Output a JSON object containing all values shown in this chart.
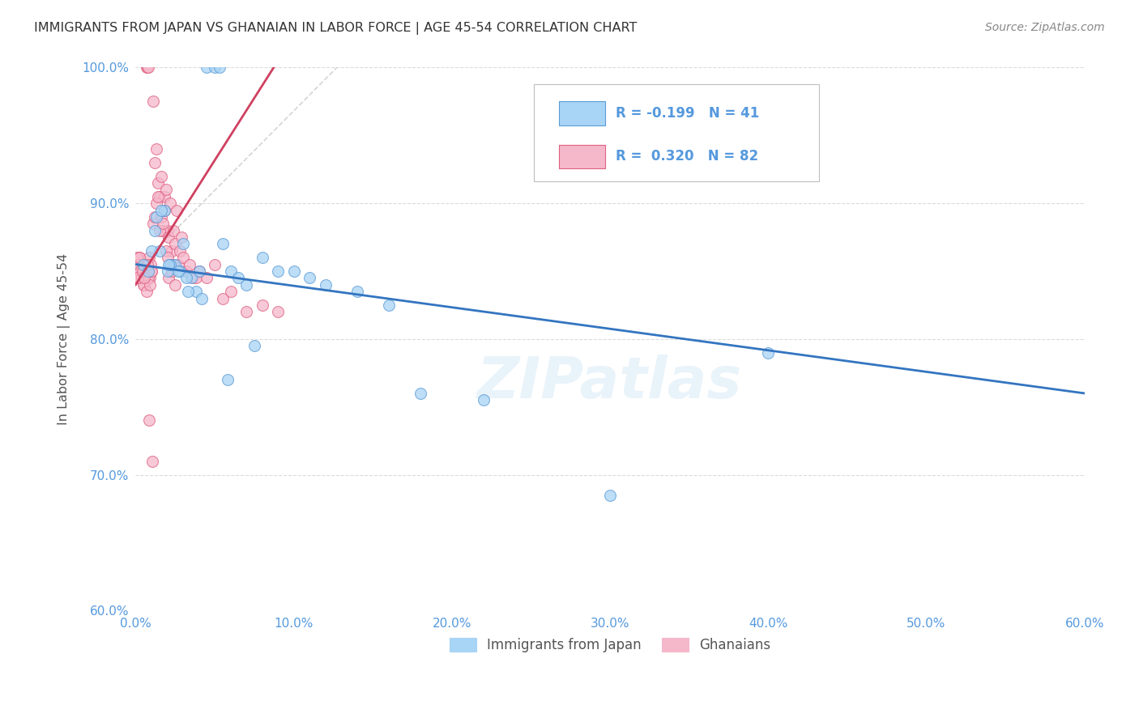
{
  "title": "IMMIGRANTS FROM JAPAN VS GHANAIAN IN LABOR FORCE | AGE 45-54 CORRELATION CHART",
  "source": "Source: ZipAtlas.com",
  "ylabel": "In Labor Force | Age 45-54",
  "y_ticks": [
    60.0,
    70.0,
    80.0,
    90.0,
    100.0
  ],
  "x_ticks": [
    0.0,
    10.0,
    20.0,
    30.0,
    40.0,
    50.0,
    60.0
  ],
  "xlim": [
    0.0,
    60.0
  ],
  "ylim": [
    60.0,
    100.0
  ],
  "blue_R": -0.199,
  "blue_N": 41,
  "pink_R": 0.32,
  "pink_N": 82,
  "legend_label_blue": "Immigrants from Japan",
  "legend_label_pink": "Ghanaians",
  "blue_color": "#a8d4f5",
  "pink_color": "#f5b8cb",
  "blue_edge_color": "#5b9bd5",
  "pink_edge_color": "#e06080",
  "blue_line_color": "#3375c0",
  "pink_line_color": "#d04060",
  "ref_line_color": "#d0d0d0",
  "background_color": "#ffffff",
  "grid_color": "#d8d8d8",
  "axis_tick_color": "#5599dd",
  "title_color": "#333333",
  "source_color": "#888888",
  "blue_scatter_x": [
    4.5,
    5.0,
    5.3,
    1.5,
    2.0,
    2.5,
    3.0,
    3.5,
    4.0,
    5.5,
    6.0,
    6.5,
    7.0,
    8.0,
    9.0,
    10.0,
    11.0,
    12.0,
    14.0,
    16.0,
    18.0,
    22.0,
    30.0,
    40.0,
    1.0,
    1.2,
    1.8,
    2.2,
    2.8,
    3.2,
    3.8,
    4.2,
    5.8,
    7.5,
    0.5,
    0.8,
    1.3,
    1.6,
    2.1,
    2.7,
    3.3
  ],
  "blue_scatter_y": [
    100.0,
    100.0,
    100.0,
    86.5,
    85.0,
    85.5,
    87.0,
    84.5,
    85.0,
    87.0,
    85.0,
    84.5,
    84.0,
    86.0,
    85.0,
    85.0,
    84.5,
    84.0,
    83.5,
    82.5,
    76.0,
    75.5,
    68.5,
    79.0,
    86.5,
    88.0,
    89.5,
    85.5,
    85.0,
    84.5,
    83.5,
    83.0,
    77.0,
    79.5,
    85.5,
    85.0,
    89.0,
    89.5,
    85.5,
    85.0,
    83.5
  ],
  "pink_scatter_x": [
    0.1,
    0.15,
    0.2,
    0.25,
    0.3,
    0.35,
    0.4,
    0.5,
    0.55,
    0.6,
    0.65,
    0.7,
    0.75,
    0.8,
    0.85,
    0.9,
    0.95,
    1.0,
    1.1,
    1.2,
    1.3,
    1.4,
    1.5,
    1.6,
    1.7,
    1.8,
    1.9,
    2.0,
    2.1,
    2.2,
    2.3,
    2.4,
    2.5,
    2.6,
    2.7,
    2.8,
    2.9,
    3.0,
    3.2,
    3.4,
    3.6,
    3.8,
    4.0,
    4.5,
    5.0,
    5.5,
    6.0,
    7.0,
    8.0,
    9.0,
    0.1,
    0.2,
    0.3,
    0.4,
    0.5,
    0.6,
    0.7,
    0.8,
    0.9,
    1.0,
    1.1,
    1.2,
    1.3,
    1.4,
    1.5,
    1.6,
    1.7,
    1.8,
    1.9,
    2.0,
    2.1,
    2.2,
    2.3,
    2.4,
    2.5,
    0.15,
    0.25,
    0.45,
    0.55,
    0.75,
    0.85,
    1.05
  ],
  "pink_scatter_y": [
    85.5,
    85.0,
    84.5,
    86.0,
    85.0,
    85.5,
    84.5,
    85.0,
    84.0,
    85.5,
    85.0,
    100.0,
    100.0,
    100.0,
    86.0,
    84.5,
    85.5,
    85.0,
    97.5,
    93.0,
    94.0,
    91.5,
    90.5,
    92.0,
    88.0,
    90.5,
    91.0,
    88.0,
    87.5,
    90.0,
    86.5,
    88.0,
    87.0,
    89.5,
    85.5,
    86.5,
    87.5,
    86.0,
    85.0,
    85.5,
    84.5,
    84.5,
    85.0,
    84.5,
    85.5,
    83.0,
    83.5,
    82.0,
    82.5,
    82.0,
    86.0,
    85.5,
    85.0,
    84.5,
    84.0,
    85.5,
    83.5,
    84.5,
    84.0,
    85.0,
    88.5,
    89.0,
    90.0,
    90.5,
    88.0,
    89.0,
    88.5,
    89.5,
    86.5,
    86.0,
    84.5,
    85.5,
    85.0,
    85.5,
    84.0,
    84.5,
    86.0,
    85.0,
    84.5,
    85.5,
    74.0,
    71.0
  ]
}
